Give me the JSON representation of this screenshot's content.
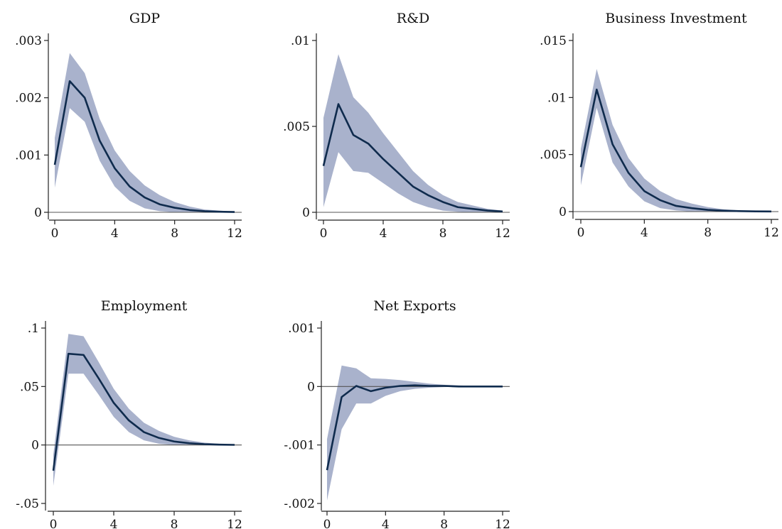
{
  "colors": {
    "band": "#a9b2cc",
    "line": "#0f2b4d",
    "axis": "#222222",
    "zero": "#555555"
  },
  "chart_data": [
    {
      "type": "area",
      "title": "GDP",
      "xlabel": "",
      "ylabel": "",
      "xlim": [
        0,
        12
      ],
      "ylim": [
        0,
        0.003
      ],
      "x_ticks": [
        0,
        4,
        8,
        12
      ],
      "y_ticks": [
        0,
        0.001,
        0.002,
        0.003
      ],
      "y_tick_labels": [
        "0",
        ".001",
        ".002",
        ".003"
      ],
      "x": [
        0,
        1,
        2,
        3,
        4,
        5,
        6,
        7,
        8,
        9,
        10,
        11,
        12
      ],
      "response": [
        0.00083,
        0.00229,
        0.002,
        0.00125,
        0.00077,
        0.00045,
        0.00026,
        0.00014,
        8e-05,
        4e-05,
        2e-05,
        1e-05,
        5e-06
      ],
      "lower": [
        0.00043,
        0.00182,
        0.00158,
        0.0009,
        0.00045,
        0.0002,
        7e-05,
        2e-05,
        0.0,
        0.0,
        0.0,
        0.0,
        0.0
      ],
      "upper": [
        0.0013,
        0.00278,
        0.00243,
        0.00163,
        0.00108,
        0.00072,
        0.00047,
        0.0003,
        0.00018,
        0.0001,
        5e-05,
        3e-05,
        1e-05
      ],
      "grid": false
    },
    {
      "type": "area",
      "title": "R&D",
      "xlabel": "",
      "ylabel": "",
      "xlim": [
        0,
        12
      ],
      "ylim": [
        0,
        0.01
      ],
      "x_ticks": [
        0,
        4,
        8,
        12
      ],
      "y_ticks": [
        0,
        0.005,
        0.01
      ],
      "y_tick_labels": [
        "0",
        ".005",
        ".01"
      ],
      "x": [
        0,
        1,
        2,
        3,
        4,
        5,
        6,
        7,
        8,
        9,
        10,
        11,
        12
      ],
      "response": [
        0.0027,
        0.0063,
        0.0045,
        0.004,
        0.0031,
        0.0023,
        0.0015,
        0.001,
        0.0006,
        0.0003,
        0.0002,
        0.0001,
        5e-05
      ],
      "lower": [
        0.0003,
        0.0035,
        0.0024,
        0.0023,
        0.0017,
        0.0011,
        0.0006,
        0.0003,
        0.0001,
        3e-05,
        0.0,
        0.0,
        0.0
      ],
      "upper": [
        0.0055,
        0.0092,
        0.0067,
        0.0058,
        0.0046,
        0.0035,
        0.0024,
        0.0016,
        0.001,
        0.0006,
        0.0004,
        0.0002,
        0.0001
      ],
      "grid": false
    },
    {
      "type": "area",
      "title": "Business Investment",
      "xlabel": "",
      "ylabel": "",
      "xlim": [
        0,
        12
      ],
      "ylim": [
        0,
        0.015
      ],
      "x_ticks": [
        0,
        4,
        8,
        12
      ],
      "y_ticks": [
        0,
        0.005,
        0.01,
        0.015
      ],
      "y_tick_labels": [
        "0",
        ".005",
        ".01",
        ".015"
      ],
      "x": [
        0,
        1,
        2,
        3,
        4,
        5,
        6,
        7,
        8,
        9,
        10,
        11,
        12
      ],
      "response": [
        0.0039,
        0.0107,
        0.0059,
        0.0034,
        0.0018,
        0.001,
        0.0005,
        0.0003,
        0.00015,
        8e-05,
        4e-05,
        2e-05,
        1e-05
      ],
      "lower": [
        0.0023,
        0.0091,
        0.0043,
        0.0022,
        0.0009,
        0.0003,
        0.0001,
        0.0,
        0.0,
        0.0,
        0.0,
        0.0,
        0.0
      ],
      "upper": [
        0.0055,
        0.0125,
        0.0076,
        0.0047,
        0.0029,
        0.0018,
        0.0011,
        0.0007,
        0.0004,
        0.0002,
        0.0001,
        6e-05,
        3e-05
      ],
      "grid": false
    },
    {
      "type": "area",
      "title": "Employment",
      "xlabel": "",
      "ylabel": "",
      "xlim": [
        0,
        12
      ],
      "ylim": [
        -0.05,
        0.1
      ],
      "x_ticks": [
        0,
        4,
        8,
        12
      ],
      "y_ticks": [
        -0.05,
        0,
        0.05,
        0.1
      ],
      "y_tick_labels": [
        "-.05",
        "0",
        ".05",
        ".1"
      ],
      "x": [
        0,
        1,
        2,
        3,
        4,
        5,
        6,
        7,
        8,
        9,
        10,
        11,
        12
      ],
      "response": [
        -0.022,
        0.078,
        0.077,
        0.057,
        0.036,
        0.021,
        0.011,
        0.006,
        0.003,
        0.0015,
        0.0007,
        0.0003,
        0.0001
      ],
      "lower": [
        -0.035,
        0.061,
        0.061,
        0.043,
        0.024,
        0.011,
        0.004,
        0.001,
        0.0,
        0.0,
        0.0,
        0.0,
        0.0
      ],
      "upper": [
        -0.008,
        0.095,
        0.093,
        0.071,
        0.048,
        0.031,
        0.019,
        0.012,
        0.007,
        0.004,
        0.002,
        0.001,
        0.0005
      ],
      "grid": false
    },
    {
      "type": "area",
      "title": "Net Exports",
      "xlabel": "",
      "ylabel": "",
      "xlim": [
        0,
        12
      ],
      "ylim": [
        -0.002,
        0.001
      ],
      "x_ticks": [
        0,
        4,
        8,
        12
      ],
      "y_ticks": [
        -0.002,
        -0.001,
        0,
        0.001
      ],
      "y_tick_labels": [
        "-.002",
        "-.001",
        "0",
        ".001"
      ],
      "x": [
        0,
        1,
        2,
        3,
        4,
        5,
        6,
        7,
        8,
        9,
        10,
        11,
        12
      ],
      "response": [
        -0.00143,
        -0.00018,
        1e-05,
        -8e-05,
        -2e-05,
        1e-05,
        2e-05,
        1e-05,
        1e-05,
        0.0,
        0.0,
        0.0,
        0.0
      ],
      "lower": [
        -0.00195,
        -0.00073,
        -0.00029,
        -0.00029,
        -0.00016,
        -8e-05,
        -4e-05,
        -2e-05,
        -1e-05,
        0.0,
        0.0,
        0.0,
        0.0
      ],
      "upper": [
        -0.0009,
        0.00036,
        0.00031,
        0.00014,
        0.00013,
        0.00011,
        8e-05,
        5e-05,
        3e-05,
        2e-05,
        1e-05,
        0.0,
        0.0
      ],
      "grid": false
    }
  ]
}
